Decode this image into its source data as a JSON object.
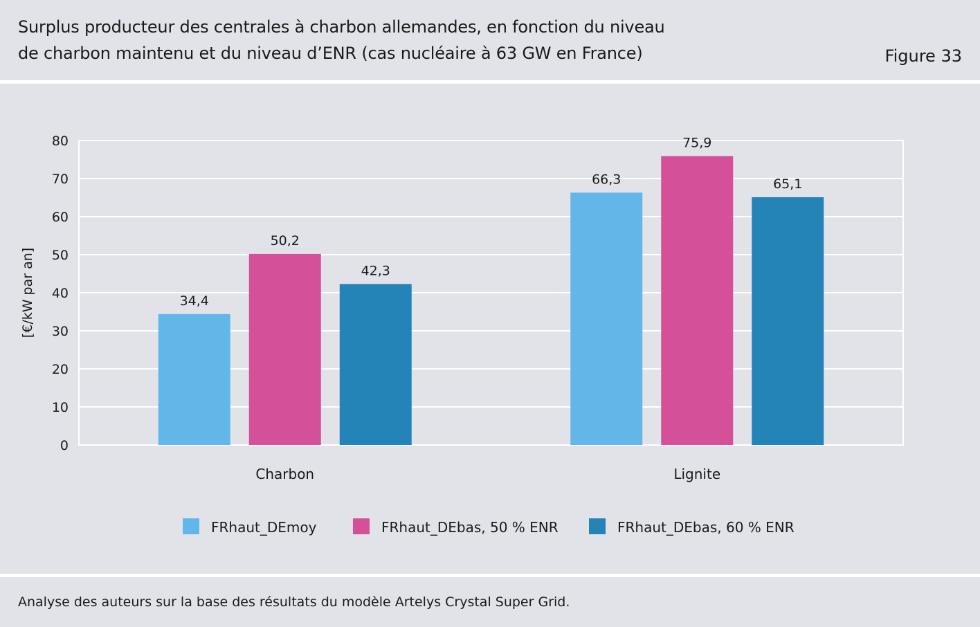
{
  "header": {
    "title_line1": "Surplus producteur des centrales à charbon allemandes, en fonction du niveau",
    "title_line2": "de charbon maintenu et du niveau d’ENR (cas nucléaire à 63 GW en France)",
    "figure_label": "Figure 33"
  },
  "footer": {
    "source": "Analyse des auteurs sur la base des résultats du modèle Artelys Crystal Super Grid."
  },
  "chart_data": {
    "type": "bar",
    "title": "Surplus producteur des centrales à charbon allemandes, en fonction du niveau de charbon maintenu et du niveau d’ENR (cas nucléaire à 63 GW en France)",
    "xlabel": "",
    "ylabel": "[€/kW par an]",
    "ylim": [
      0,
      80
    ],
    "yticks": [
      0,
      10,
      20,
      30,
      40,
      50,
      60,
      70,
      80
    ],
    "grid": true,
    "legend_position": "bottom",
    "categories": [
      "Charbon",
      "Lignite"
    ],
    "series": [
      {
        "name": "FRhaut_DEmoy",
        "color": "#62b7e8",
        "values": [
          34.4,
          66.3
        ],
        "labels": [
          "34,4",
          "66,3"
        ]
      },
      {
        "name": "FRhaut_DEbas, 50 % ENR",
        "color": "#d45099",
        "values": [
          50.2,
          75.9
        ],
        "labels": [
          "50,2",
          "75,9"
        ]
      },
      {
        "name": "FRhaut_DEbas, 60 % ENR",
        "color": "#2484b8",
        "values": [
          42.3,
          65.1
        ],
        "labels": [
          "42,3",
          "65,1"
        ]
      }
    ]
  }
}
